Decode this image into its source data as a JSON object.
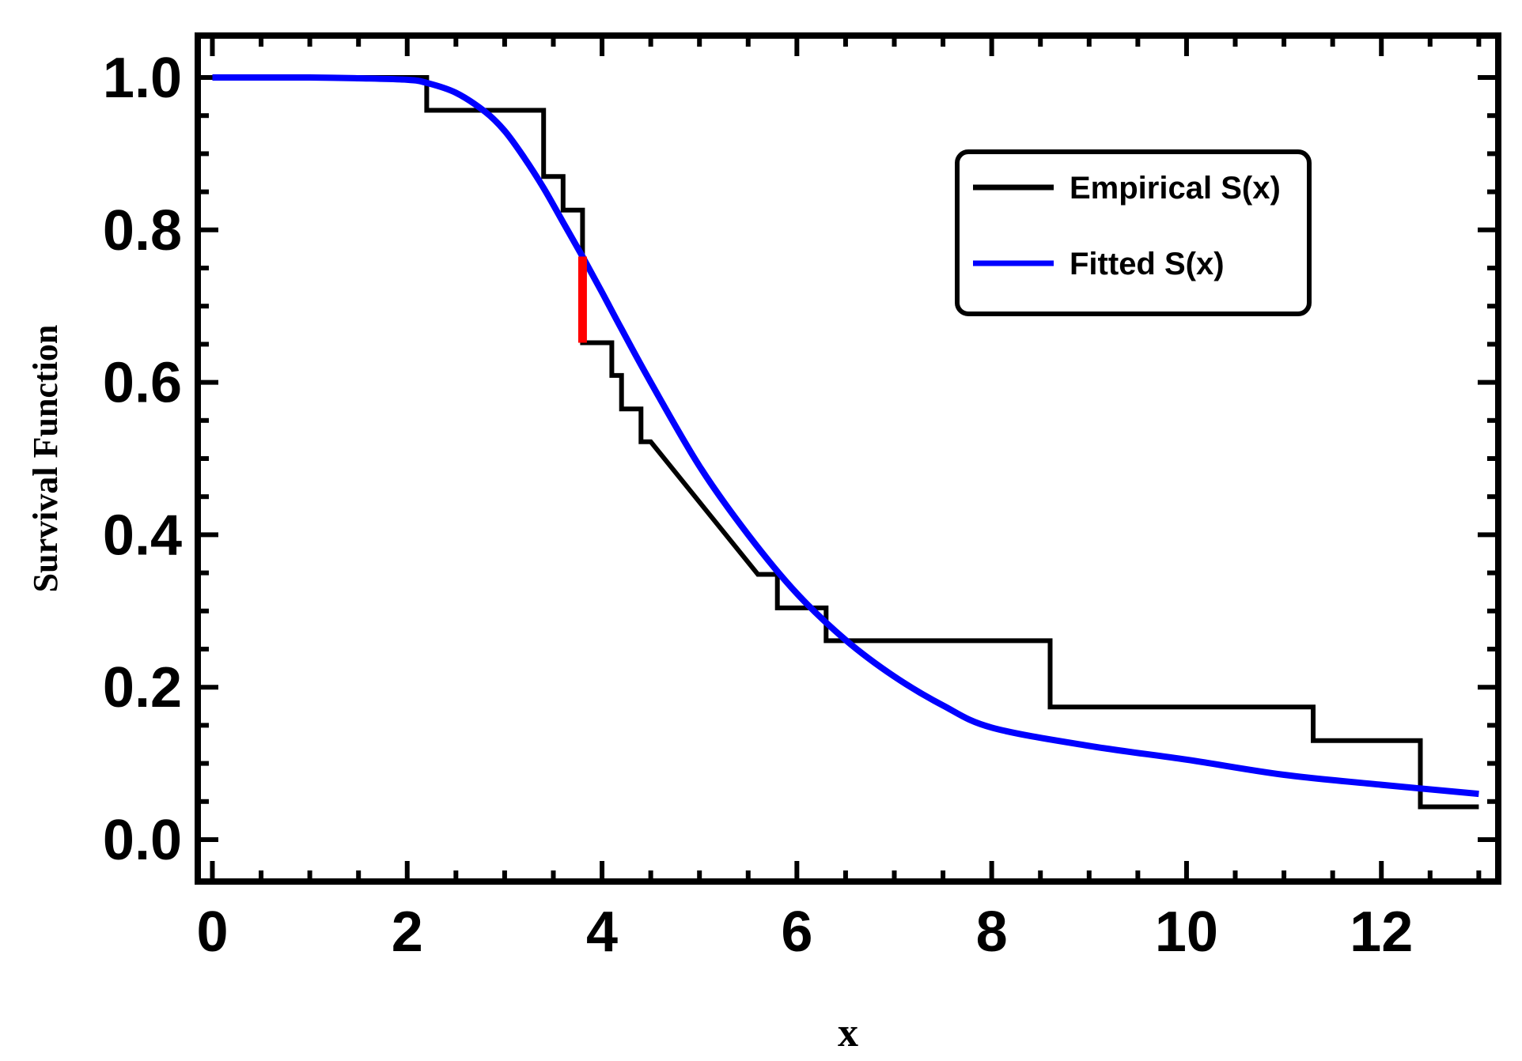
{
  "chart_data": {
    "type": "line",
    "title": "",
    "xlabel": "x",
    "ylabel": "Survival Function",
    "xlim": [
      -0.15,
      13.2
    ],
    "ylim": [
      -0.055,
      1.055
    ],
    "x_ticks": [
      0,
      2,
      4,
      6,
      8,
      10,
      12
    ],
    "y_ticks": [
      0.0,
      0.2,
      0.4,
      0.6,
      0.8,
      1.0
    ],
    "x_tick_labels": [
      "0",
      "2",
      "4",
      "6",
      "8",
      "10",
      "12"
    ],
    "y_tick_labels": [
      "0.0",
      "0.2",
      "0.4",
      "0.6",
      "0.8",
      "1.0"
    ],
    "grid": false,
    "legend_position": "top-right",
    "colors": {
      "empirical": "#000000",
      "fitted": "#0000ff",
      "max_gap": "#ff0000",
      "frame": "#000000"
    },
    "series": [
      {
        "name": "Empirical S(x)",
        "style": "step",
        "x": [
          0,
          2.2,
          2.2,
          3.4,
          3.4,
          3.6,
          3.6,
          3.8,
          3.8,
          4.1,
          4.1,
          4.2,
          4.2,
          4.4,
          4.4,
          4.5,
          5.6,
          5.8,
          5.8,
          6.3,
          6.3,
          8.6,
          8.6,
          11.3,
          11.3,
          12.4,
          12.4,
          13.0
        ],
        "y": [
          1.0,
          1.0,
          0.957,
          0.957,
          0.87,
          0.87,
          0.826,
          0.826,
          0.652,
          0.652,
          0.609,
          0.609,
          0.565,
          0.565,
          0.522,
          0.522,
          0.348,
          0.348,
          0.304,
          0.304,
          0.261,
          0.261,
          0.174,
          0.174,
          0.13,
          0.13,
          0.043,
          0.043
        ]
      },
      {
        "name": "Fitted S(x)",
        "style": "smooth",
        "x": [
          0,
          1.0,
          1.5,
          2.0,
          2.2,
          2.5,
          2.8,
          3.0,
          3.2,
          3.4,
          3.6,
          3.8,
          4.0,
          4.2,
          4.5,
          5.0,
          5.5,
          6.0,
          6.5,
          7.0,
          7.5,
          8.0,
          9.0,
          10.0,
          11.0,
          12.0,
          13.0
        ],
        "y": [
          1.0,
          1.0,
          0.999,
          0.997,
          0.993,
          0.98,
          0.955,
          0.93,
          0.895,
          0.855,
          0.81,
          0.765,
          0.718,
          0.67,
          0.6,
          0.49,
          0.4,
          0.323,
          0.262,
          0.214,
          0.176,
          0.147,
          0.123,
          0.105,
          0.085,
          0.072,
          0.06
        ]
      }
    ],
    "annotations": [
      {
        "type": "vertical-segment",
        "meaning": "maximum deviation",
        "x": 3.8,
        "y_from": 0.652,
        "y_to": 0.765
      }
    ]
  }
}
